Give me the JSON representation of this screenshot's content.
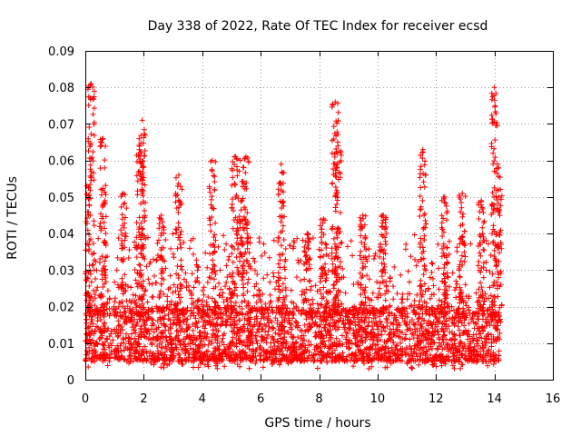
{
  "chart_data": {
    "type": "scatter",
    "title": "Day 338 of 2022, Rate Of TEC Index for receiver ecsd",
    "xlabel": "GPS time / hours",
    "ylabel": "ROTI / TECUs",
    "xlim": [
      0,
      16
    ],
    "ylim": [
      0,
      0.09
    ],
    "x_ticks": [
      0,
      2,
      4,
      6,
      8,
      10,
      12,
      14,
      16
    ],
    "x_tick_labels": [
      "0",
      "2",
      "4",
      "6",
      "8",
      "10",
      "12",
      "14",
      "16"
    ],
    "y_ticks": [
      0,
      0.01,
      0.02,
      0.03,
      0.04,
      0.05,
      0.06,
      0.07,
      0.08,
      0.09
    ],
    "y_tick_labels": [
      "0",
      "0.01",
      "0.02",
      "0.03",
      "0.04",
      "0.05",
      "0.06",
      "0.07",
      "0.08",
      "0.09"
    ],
    "grid": true,
    "marker": "+",
    "color": "#ff0000",
    "series": [
      {
        "name": "ROTI",
        "x_range": [
          0,
          14.2
        ],
        "baseline_band": [
          0.005,
          0.02
        ],
        "spikes": [
          {
            "x": 0.05,
            "peak": 0.053
          },
          {
            "x": 0.2,
            "peak": 0.081
          },
          {
            "x": 0.6,
            "peak": 0.066
          },
          {
            "x": 1.3,
            "peak": 0.051
          },
          {
            "x": 1.85,
            "peak": 0.063
          },
          {
            "x": 1.95,
            "peak": 0.071
          },
          {
            "x": 2.6,
            "peak": 0.045
          },
          {
            "x": 3.2,
            "peak": 0.056
          },
          {
            "x": 4.35,
            "peak": 0.06
          },
          {
            "x": 5.1,
            "peak": 0.061
          },
          {
            "x": 5.3,
            "peak": 0.06
          },
          {
            "x": 5.5,
            "peak": 0.061
          },
          {
            "x": 6.7,
            "peak": 0.059
          },
          {
            "x": 7.6,
            "peak": 0.04
          },
          {
            "x": 8.15,
            "peak": 0.044
          },
          {
            "x": 8.55,
            "peak": 0.076
          },
          {
            "x": 8.65,
            "peak": 0.064
          },
          {
            "x": 9.5,
            "peak": 0.045
          },
          {
            "x": 10.2,
            "peak": 0.045
          },
          {
            "x": 11.55,
            "peak": 0.063
          },
          {
            "x": 12.3,
            "peak": 0.05
          },
          {
            "x": 12.9,
            "peak": 0.051
          },
          {
            "x": 13.55,
            "peak": 0.049
          },
          {
            "x": 14.0,
            "peak": 0.08
          },
          {
            "x": 14.15,
            "peak": 0.058
          }
        ]
      }
    ]
  }
}
